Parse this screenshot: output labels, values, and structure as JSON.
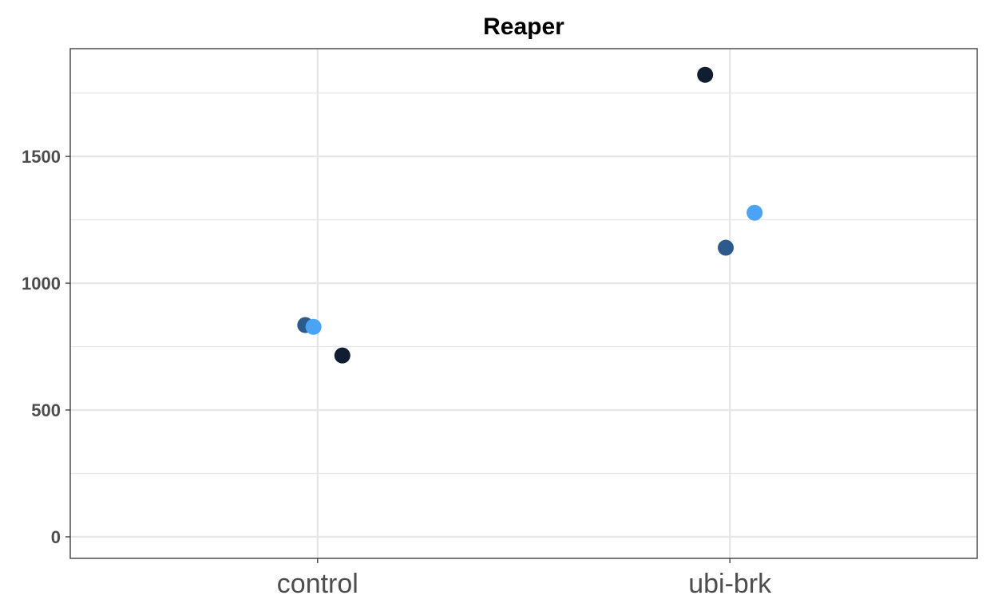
{
  "chart_data": {
    "type": "scatter",
    "title": "Reaper",
    "xlabel": "",
    "ylabel": "",
    "categories": [
      "control",
      "ubi-brk"
    ],
    "yticks": [
      0,
      500,
      1000,
      1500
    ],
    "ylim": [
      -85,
      1925
    ],
    "grid": true,
    "legend": "none",
    "colors": {
      "dark_navy": "#0f1e30",
      "mid_blue": "#2d5a8c",
      "light_blue": "#4aa3f5",
      "grid": "#e6e6e6",
      "panel_border": "#333333",
      "tick_label": "#4d4d4d"
    },
    "series": [
      {
        "color": "#0f1e30",
        "points": [
          {
            "category": "control",
            "jitter": 0.06,
            "y": 715
          },
          {
            "category": "ubi-brk",
            "jitter": -0.06,
            "y": 1822
          }
        ]
      },
      {
        "color": "#2d5a8c",
        "points": [
          {
            "category": "control",
            "jitter": -0.03,
            "y": 835
          },
          {
            "category": "ubi-brk",
            "jitter": -0.01,
            "y": 1140
          }
        ]
      },
      {
        "color": "#4aa3f5",
        "points": [
          {
            "category": "control",
            "jitter": -0.01,
            "y": 828
          },
          {
            "category": "ubi-brk",
            "jitter": 0.06,
            "y": 1278
          }
        ]
      }
    ]
  }
}
